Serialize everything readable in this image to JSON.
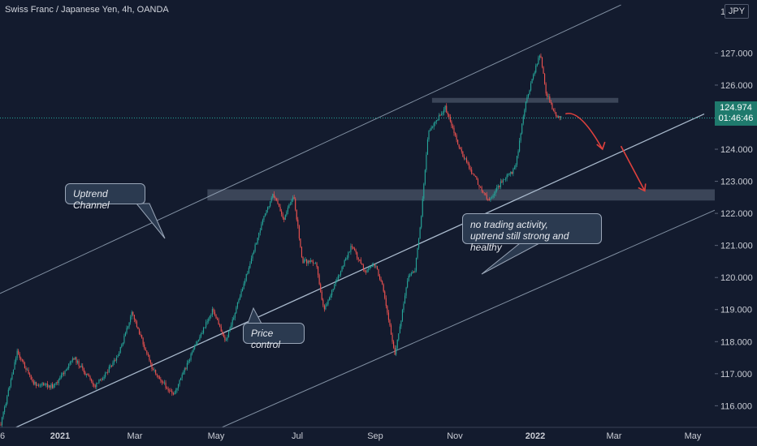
{
  "header": {
    "title": "Swiss Franc / Japanese Yen, 4h, OANDA",
    "currency": "JPY"
  },
  "price_tag": {
    "price": "124.974",
    "countdown": "01:46:46"
  },
  "annotations": [
    {
      "text": "Uptrend Channel"
    },
    {
      "text": "Price control"
    },
    {
      "lines": [
        "no trading activity,",
        "uptrend still strong and healthy"
      ]
    }
  ],
  "colors": {
    "background": "#131b2e",
    "up": "#26a69a",
    "down": "#ef5350",
    "channel": "#b2c3d6",
    "zone": "#4a5467",
    "arrow": "#e0413d",
    "label_box": "#2b3a50",
    "price_tag": "#1f7a6d"
  },
  "chart_data": {
    "type": "candlestick",
    "title": "Swiss Franc / Japanese Yen, 4h, OANDA",
    "y_axis": {
      "position": "right",
      "ticks": [
        "127.000",
        "126.000",
        "125.000",
        "124.000",
        "123.000",
        "122.000",
        "121.000",
        "120.000",
        "119.000",
        "118.000",
        "117.000",
        "116.000"
      ],
      "top_partial_label": "12",
      "range": [
        115.2,
        128.3
      ]
    },
    "x_axis": {
      "ticks": [
        "6",
        "2021",
        "Mar",
        "May",
        "Jul",
        "Sep",
        "Nov",
        "2022",
        "Mar",
        "May"
      ],
      "range": [
        "2020-11-25",
        "2022-05-20"
      ]
    },
    "last_price": 124.974,
    "path_points": [
      [
        "2020-11-25",
        115.3
      ],
      [
        "2020-12-08",
        117.7
      ],
      [
        "2020-12-20",
        116.7
      ],
      [
        "2021-01-05",
        116.6
      ],
      [
        "2021-01-20",
        117.5
      ],
      [
        "2021-02-05",
        116.6
      ],
      [
        "2021-02-22",
        117.5
      ],
      [
        "2021-03-05",
        118.9
      ],
      [
        "2021-03-20",
        117.2
      ],
      [
        "2021-04-05",
        116.3
      ],
      [
        "2021-04-20",
        117.7
      ],
      [
        "2021-05-05",
        119.0
      ],
      [
        "2021-05-15",
        118.0
      ],
      [
        "2021-05-30",
        120.0
      ],
      [
        "2021-06-12",
        121.8
      ],
      [
        "2021-06-20",
        122.6
      ],
      [
        "2021-06-28",
        121.8
      ],
      [
        "2021-07-05",
        122.6
      ],
      [
        "2021-07-12",
        120.5
      ],
      [
        "2021-07-22",
        120.5
      ],
      [
        "2021-07-28",
        119.0
      ],
      [
        "2021-08-08",
        120.0
      ],
      [
        "2021-08-18",
        121.0
      ],
      [
        "2021-08-28",
        120.2
      ],
      [
        "2021-09-05",
        120.4
      ],
      [
        "2021-09-10",
        119.8
      ],
      [
        "2021-09-20",
        117.6
      ],
      [
        "2021-09-30",
        120.0
      ],
      [
        "2021-10-05",
        120.2
      ],
      [
        "2021-10-10",
        122.0
      ],
      [
        "2021-10-15",
        124.5
      ],
      [
        "2021-10-28",
        125.3
      ],
      [
        "2021-11-08",
        124.0
      ],
      [
        "2021-11-18",
        123.2
      ],
      [
        "2021-11-30",
        122.4
      ],
      [
        "2021-12-10",
        123.0
      ],
      [
        "2021-12-20",
        123.4
      ],
      [
        "2021-12-28",
        125.5
      ],
      [
        "2022-01-05",
        126.6
      ],
      [
        "2022-01-08",
        127.0
      ],
      [
        "2022-01-12",
        125.8
      ],
      [
        "2022-01-20",
        125.0
      ],
      [
        "2022-01-24",
        124.97
      ]
    ],
    "channel_lines": [
      {
        "name": "upper channel",
        "from": [
          "2020-11-25",
          119.5
        ],
        "to": [
          "2022-03-10",
          128.5
        ]
      },
      {
        "name": "channel base",
        "from": [
          "2020-11-25",
          115.1
        ],
        "to": [
          "2022-05-12",
          125.1
        ]
      },
      {
        "name": "lower channel",
        "from": [
          "2021-05-05",
          115.2
        ],
        "to": [
          "2022-05-20",
          122.1
        ]
      }
    ],
    "zones": [
      {
        "from": "2021-05-01",
        "to": "2022-05-20",
        "y": [
          122.4,
          122.75
        ]
      },
      {
        "from": "2021-10-18",
        "to": "2022-03-08",
        "y": [
          125.45,
          125.6
        ]
      }
    ],
    "projected_path": [
      [
        "2022-01-27",
        125.1
      ],
      [
        "2022-02-07",
        125.0
      ],
      [
        "2022-02-24",
        124.0
      ],
      [
        "2022-03-10",
        124.1
      ],
      [
        "2022-03-28",
        122.7
      ]
    ]
  }
}
